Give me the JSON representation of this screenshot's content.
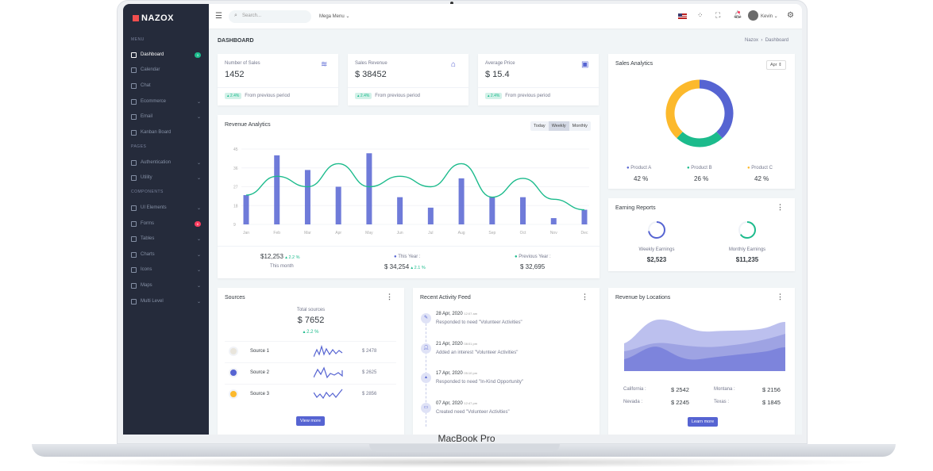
{
  "device_label": "MacBook Pro",
  "brand": "NAZOX",
  "sidebar": {
    "sections": [
      "MENU",
      "PAGES",
      "COMPONENTS"
    ],
    "items": [
      {
        "label": "Dashboard",
        "badge": "3",
        "active": true
      },
      {
        "label": "Calendar"
      },
      {
        "label": "Chat"
      },
      {
        "label": "Ecommerce",
        "chevron": true
      },
      {
        "label": "Email",
        "chevron": true
      },
      {
        "label": "Kanban Board"
      },
      {
        "label": "Authentication",
        "chevron": true
      },
      {
        "label": "Utility",
        "chevron": true
      },
      {
        "label": "UI Elements",
        "chevron": true
      },
      {
        "label": "Forms",
        "badge": "6"
      },
      {
        "label": "Tables",
        "chevron": true
      },
      {
        "label": "Charts",
        "chevron": true
      },
      {
        "label": "Icons",
        "chevron": true
      },
      {
        "label": "Maps",
        "chevron": true
      },
      {
        "label": "Multi Level",
        "chevron": true
      }
    ]
  },
  "topbar": {
    "search_placeholder": "Search...",
    "mega_menu": "Mega Menu",
    "user": "Kevin"
  },
  "page": {
    "title": "DASHBOARD",
    "breadcrumb": [
      "Nazox",
      "Dashboard"
    ]
  },
  "stats": [
    {
      "label": "Number of Sales",
      "value": "1452",
      "change": "2.4%",
      "note": "From previous period",
      "icon": "layers-icon"
    },
    {
      "label": "Sales Revenue",
      "value": "$ 38452",
      "change": "2.4%",
      "note": "From previous period",
      "icon": "store-icon"
    },
    {
      "label": "Average Price",
      "value": "$ 15.4",
      "change": "2.4%",
      "note": "From previous period",
      "icon": "briefcase-icon"
    }
  ],
  "revenue": {
    "title": "Revenue Analytics",
    "tabs": [
      "Today",
      "Weekly",
      "Monthly"
    ],
    "active_tab": "Weekly",
    "this_month": "$12,253",
    "this_month_change": "2.2 %",
    "this_month_label": "This month",
    "this_year_label": "This Year :",
    "this_year": "$ 34,254",
    "this_year_change": "2.1 %",
    "prev_year_label": "Previous Year :",
    "prev_year": "$ 32,695"
  },
  "chart_data": [
    {
      "type": "bar",
      "categories": [
        "Jan",
        "Feb",
        "Mar",
        "Apr",
        "May",
        "Jun",
        "Jul",
        "Aug",
        "Sep",
        "Oct",
        "Nov",
        "Dec"
      ],
      "series": [
        {
          "kind": "bar",
          "values": [
            23,
            42,
            35,
            27,
            43,
            22,
            17,
            31,
            22,
            22,
            12,
            16
          ],
          "color": "#5664d2"
        },
        {
          "kind": "line",
          "values": [
            23,
            32,
            27,
            38,
            27,
            32,
            27,
            38,
            22,
            31,
            21,
            16
          ],
          "color": "#1cbb8c"
        }
      ],
      "yticks": [
        9,
        18,
        27,
        36,
        45
      ],
      "ylim": [
        9,
        45
      ]
    },
    {
      "type": "pie",
      "title": "Sales Analytics",
      "series": [
        {
          "name": "Product A",
          "value": 42,
          "label": "42 %",
          "color": "#5664d2"
        },
        {
          "name": "Product B",
          "value": 26,
          "label": "26 %",
          "color": "#1cbb8c"
        },
        {
          "name": "Product C",
          "value": 42,
          "label": "42 %",
          "color": "#fcb92c"
        }
      ]
    }
  ],
  "sales_analytics": {
    "title": "Sales Analytics",
    "month": "Apr"
  },
  "earning": {
    "title": "Earning Reports",
    "items": [
      {
        "label": "Weekly Earnings",
        "value": "$2,523",
        "progress": 0.72,
        "color": "#5664d2"
      },
      {
        "label": "Monthly Earnings",
        "value": "$11,235",
        "progress": 0.65,
        "color": "#1cbb8c"
      }
    ]
  },
  "sources": {
    "title": "Sources",
    "total_label": "Total sources",
    "total": "$ 7652",
    "change": "2.2 %",
    "items": [
      {
        "name": "Source 1",
        "value": "$ 2478",
        "color": "#e9e5dc"
      },
      {
        "name": "Source 2",
        "value": "$ 2625",
        "color": "#5664d2"
      },
      {
        "name": "Source 3",
        "value": "$ 2856",
        "color": "#fcb92c"
      }
    ],
    "button": "View more"
  },
  "activity": {
    "title": "Recent Activity Feed",
    "items": [
      {
        "date": "28 Apr, 2020",
        "time": "12:07 am",
        "text": "Responded to need \"Volunteer Activities\""
      },
      {
        "date": "21 Apr, 2020",
        "time": "08:01 pm",
        "text": "Added an interest \"Volunteer Activities\""
      },
      {
        "date": "17 Apr, 2020",
        "time": "05:10 pm",
        "text": "Responded to need \"In-Kind Opportunity\""
      },
      {
        "date": "07 Apr, 2020",
        "time": "12:47 pm",
        "text": "Created need \"Volunteer Activities\""
      }
    ]
  },
  "locations": {
    "title": "Revenue by Locations",
    "items": [
      {
        "name": "California :",
        "value": "$ 2542"
      },
      {
        "name": "Montana :",
        "value": "$ 2156"
      },
      {
        "name": "Nevada :",
        "value": "$ 2245"
      },
      {
        "name": "Texas :",
        "value": "$ 1845"
      }
    ],
    "button": "Learn more"
  }
}
